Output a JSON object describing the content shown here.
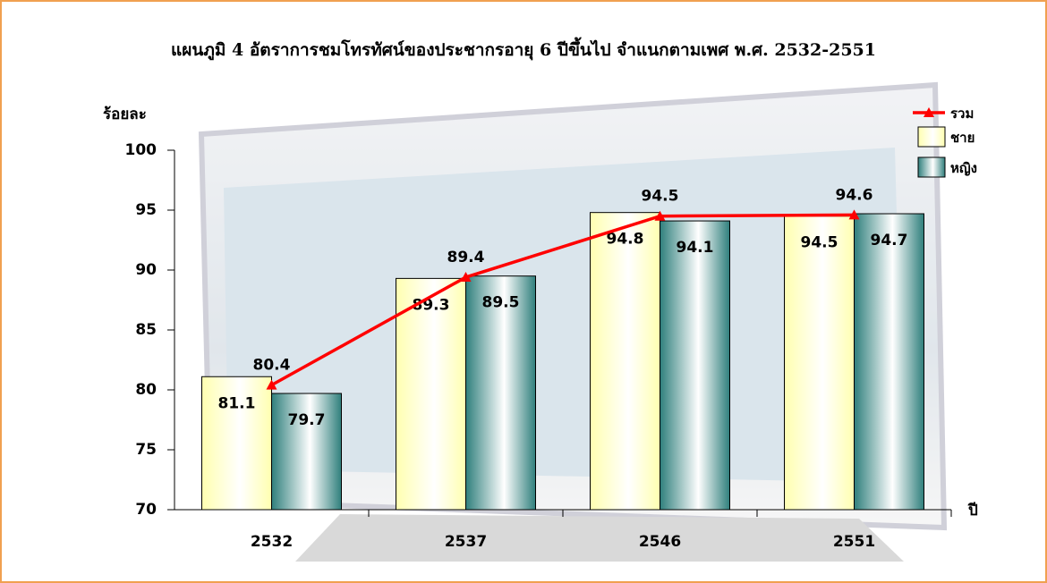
{
  "chart_data": {
    "type": "combo",
    "title": "แผนภูมิ 4  อัตราการชมโทรทัศน์ของประชากรอายุ 6 ปีขึ้นไป จำแนกตามเพศ พ.ศ. 2532-2551",
    "y_label": "ร้อยละ",
    "x_label": "ปี",
    "categories": [
      "2532",
      "2537",
      "2546",
      "2551"
    ],
    "series": [
      {
        "name": "รวม",
        "type": "line",
        "color": "#ff0000",
        "values": [
          80.4,
          89.4,
          94.5,
          94.6
        ]
      },
      {
        "name": "ชาย",
        "type": "bar",
        "color": "#ffffb0",
        "values": [
          81.1,
          89.3,
          94.8,
          94.5
        ]
      },
      {
        "name": "หญิง",
        "type": "bar",
        "color": "#2f7f7c",
        "values": [
          79.7,
          89.5,
          94.1,
          94.7
        ]
      }
    ],
    "ylim": [
      70,
      100
    ],
    "yticks": [
      70,
      75,
      80,
      85,
      90,
      95,
      100
    ],
    "legend": "top-right"
  }
}
